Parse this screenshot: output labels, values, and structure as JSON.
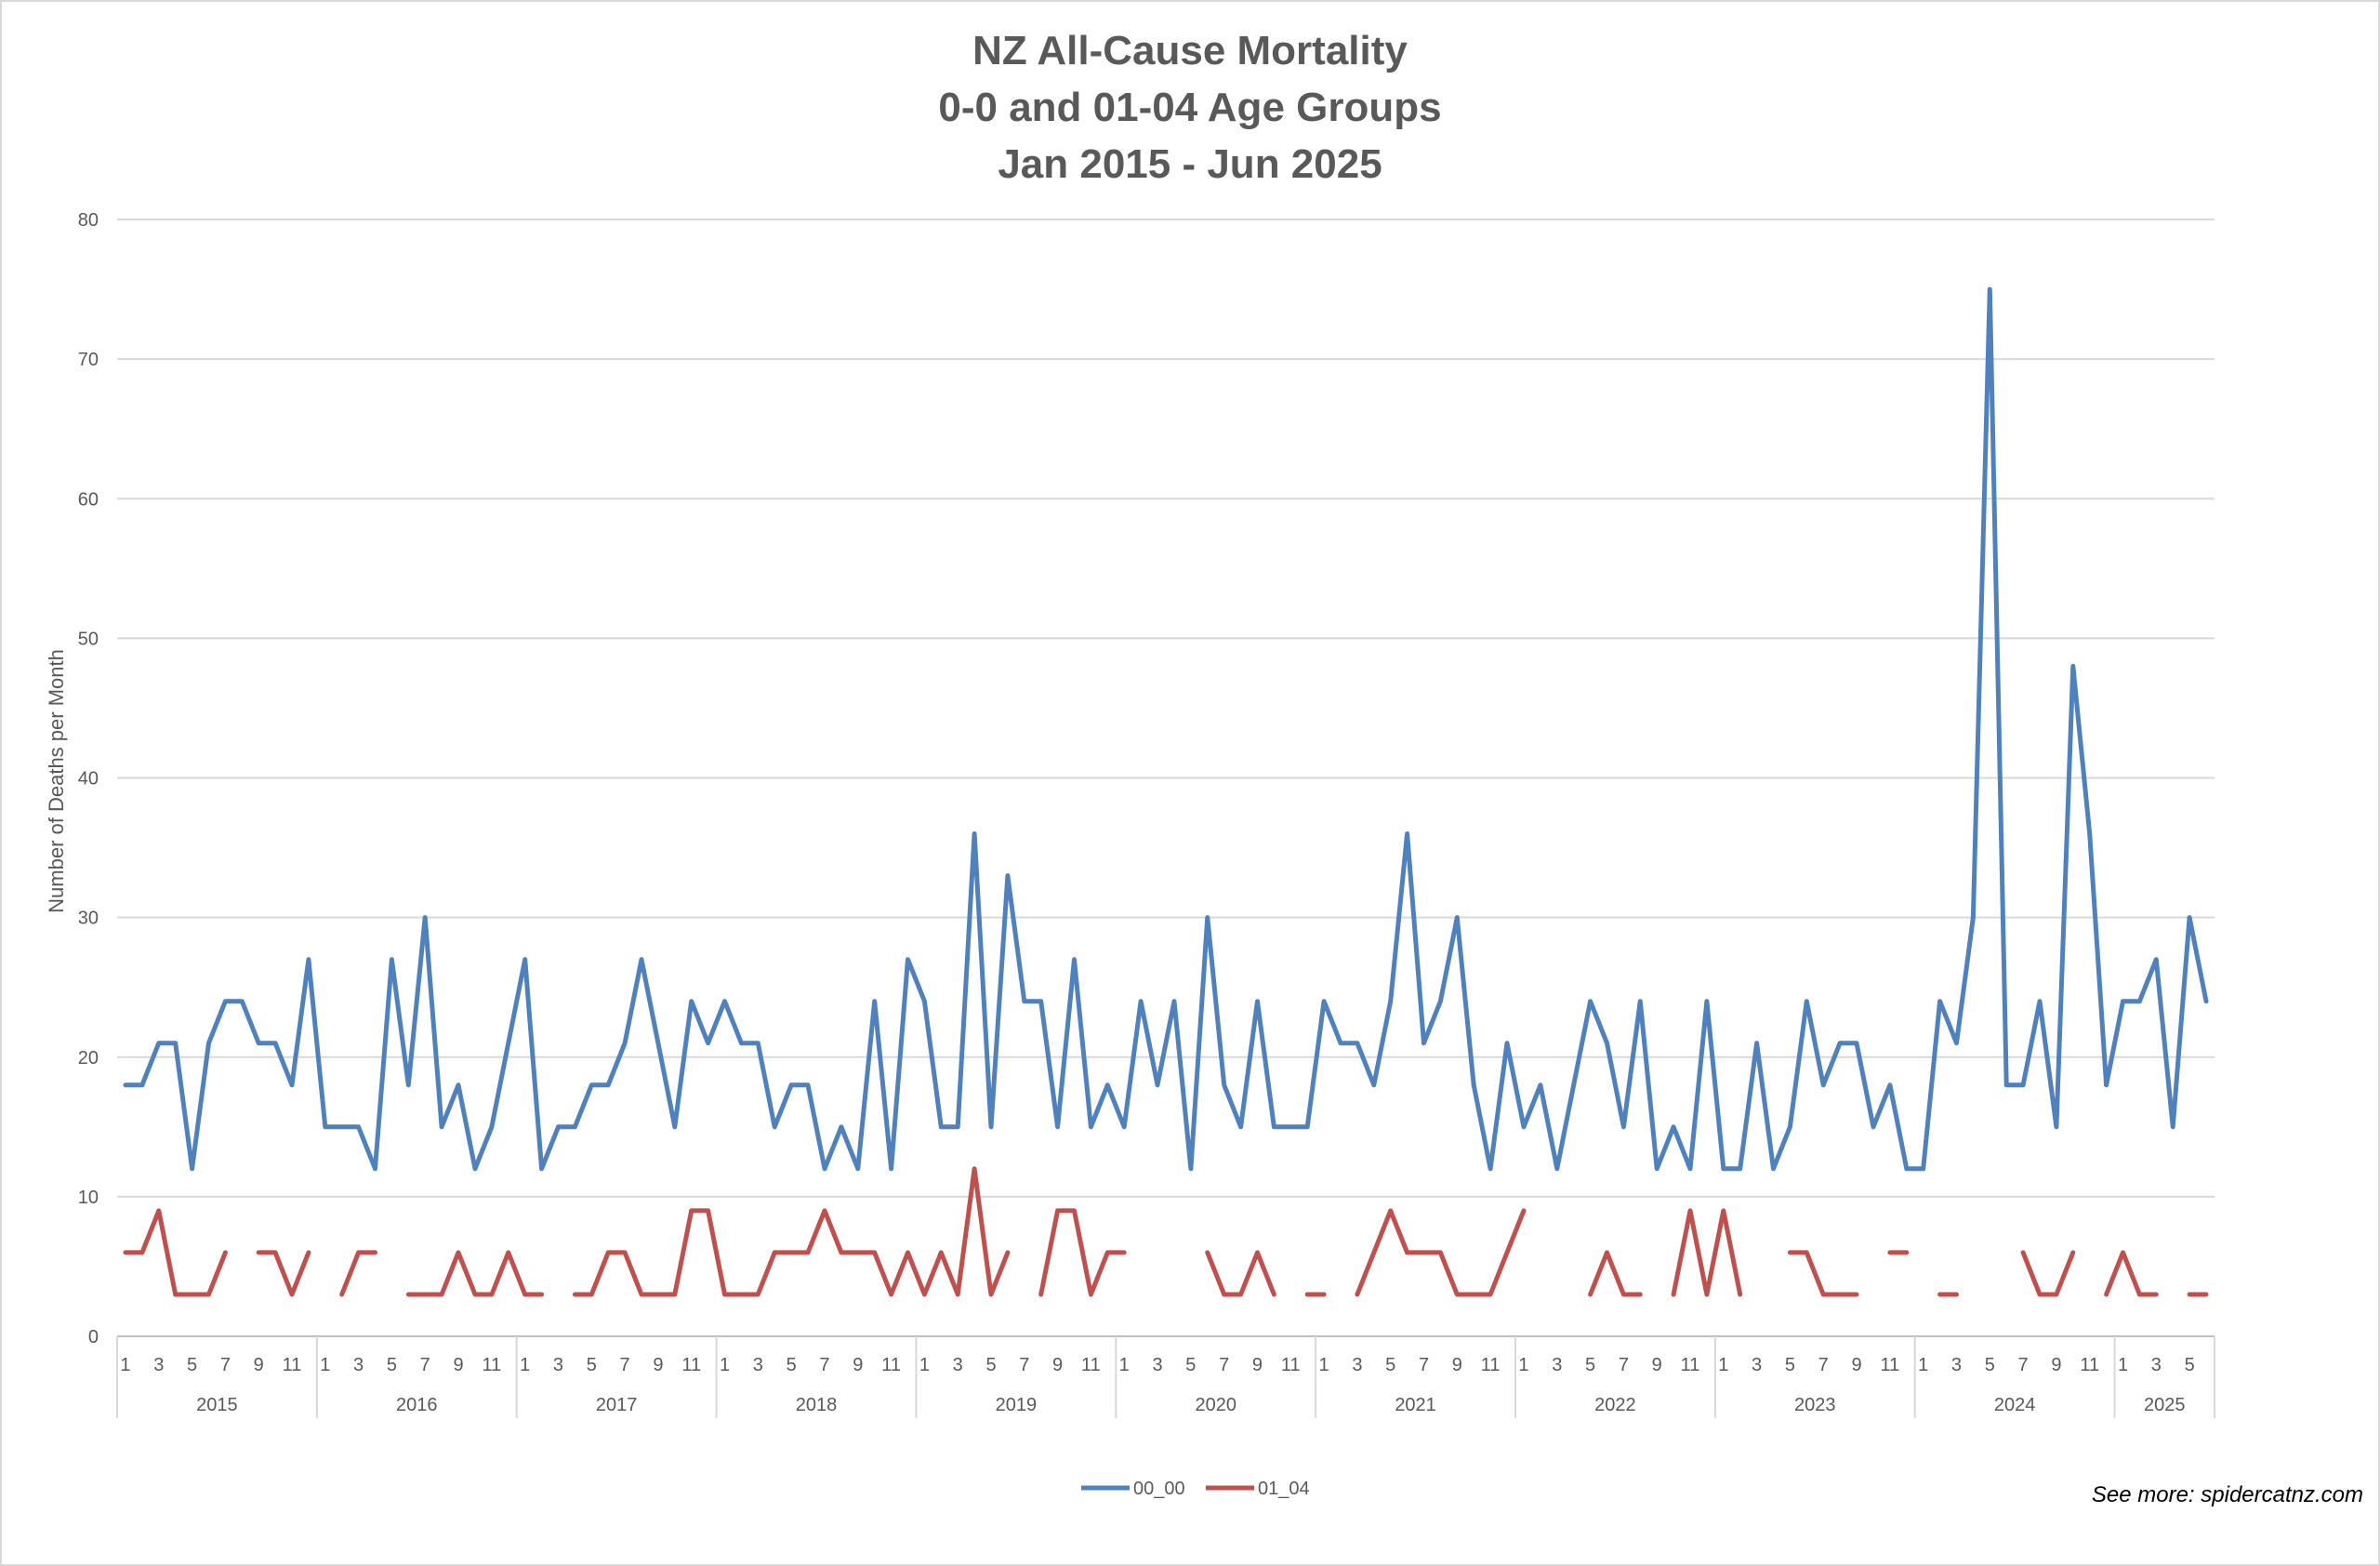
{
  "chart_data": {
    "type": "line",
    "title_lines": [
      "NZ All-Cause Mortality",
      "0-0 and 01-04 Age Groups",
      "Jan 2015 - Jun 2025"
    ],
    "ylabel": "Number of Deaths per Month",
    "xlabel": "",
    "ylim": [
      0,
      80
    ],
    "yticks": [
      0,
      10,
      20,
      30,
      40,
      50,
      60,
      70,
      80
    ],
    "grid": true,
    "legend_position": "bottom",
    "x_month_ticks": [
      "1",
      "3",
      "5",
      "7",
      "9",
      "11"
    ],
    "years": [
      "2015",
      "2016",
      "2017",
      "2018",
      "2019",
      "2020",
      "2021",
      "2022",
      "2023",
      "2024",
      "2025"
    ],
    "months_in_last_year": 6,
    "series": [
      {
        "name": "00_00",
        "color": "#4f81bd",
        "values": [
          18,
          18,
          21,
          21,
          12,
          21,
          24,
          24,
          21,
          21,
          18,
          27,
          15,
          15,
          15,
          12,
          27,
          18,
          30,
          15,
          18,
          12,
          15,
          21,
          27,
          12,
          15,
          15,
          18,
          18,
          21,
          27,
          21,
          15,
          24,
          21,
          24,
          21,
          21,
          15,
          18,
          18,
          12,
          15,
          12,
          24,
          12,
          27,
          24,
          15,
          15,
          36,
          15,
          33,
          24,
          24,
          15,
          27,
          15,
          18,
          15,
          24,
          18,
          24,
          12,
          30,
          18,
          15,
          24,
          15,
          15,
          15,
          24,
          21,
          21,
          18,
          24,
          36,
          21,
          24,
          30,
          18,
          12,
          21,
          15,
          18,
          12,
          18,
          24,
          21,
          15,
          24,
          12,
          15,
          12,
          24,
          12,
          12,
          21,
          12,
          15,
          24,
          18,
          21,
          21,
          15,
          18,
          12,
          12,
          24,
          21,
          30,
          75,
          18,
          18,
          24,
          15,
          48,
          36,
          18,
          24,
          24,
          27,
          15,
          30,
          24
        ]
      },
      {
        "name": "01_04",
        "color": "#c0504d",
        "values": [
          6,
          6,
          9,
          3,
          3,
          3,
          6,
          null,
          6,
          6,
          3,
          6,
          null,
          3,
          6,
          6,
          null,
          3,
          3,
          3,
          6,
          3,
          3,
          6,
          3,
          3,
          null,
          3,
          3,
          6,
          6,
          3,
          3,
          3,
          9,
          9,
          3,
          3,
          3,
          6,
          6,
          6,
          9,
          6,
          6,
          6,
          3,
          6,
          3,
          6,
          3,
          12,
          3,
          6,
          null,
          3,
          9,
          9,
          3,
          6,
          6,
          null,
          null,
          null,
          null,
          6,
          3,
          3,
          6,
          3,
          null,
          3,
          3,
          null,
          3,
          6,
          9,
          6,
          6,
          6,
          3,
          3,
          3,
          6,
          9,
          null,
          null,
          null,
          3,
          6,
          3,
          3,
          null,
          3,
          9,
          3,
          9,
          3,
          null,
          null,
          6,
          6,
          3,
          3,
          3,
          null,
          6,
          6,
          null,
          3,
          3,
          null,
          null,
          null,
          6,
          3,
          3,
          6,
          null,
          3,
          6,
          3,
          3,
          null,
          3,
          3
        ]
      }
    ]
  },
  "credit": "See more: spidercatnz.com"
}
